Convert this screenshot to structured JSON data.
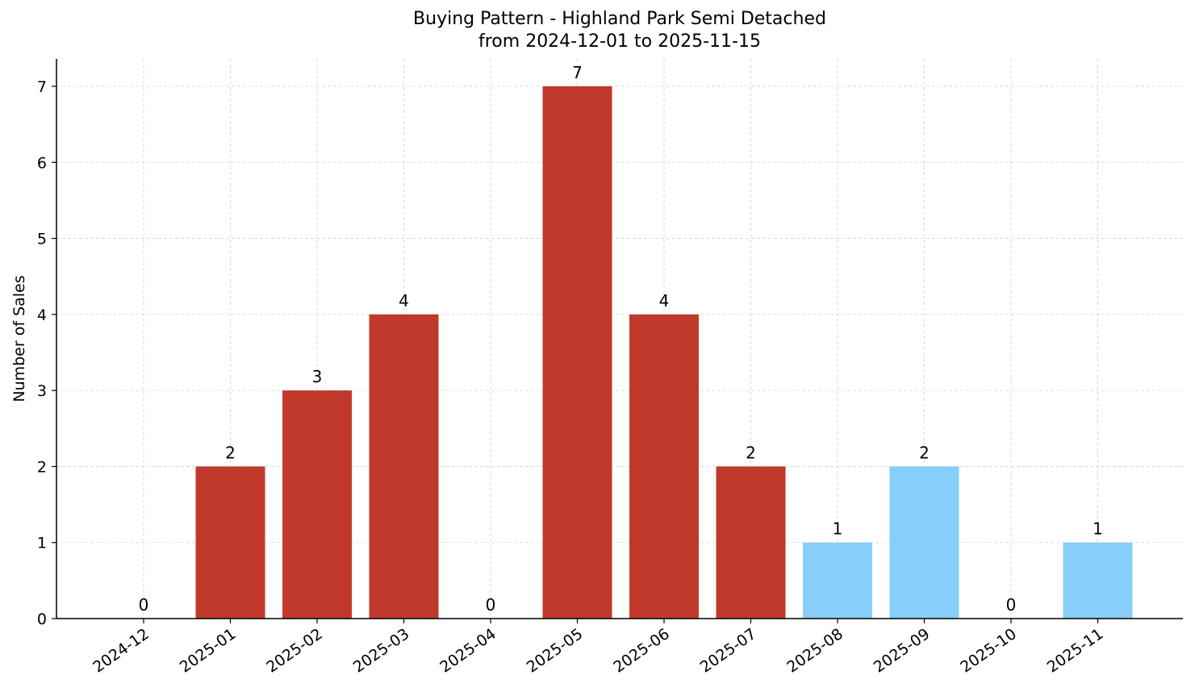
{
  "chart_data": {
    "type": "bar",
    "title": "Buying Pattern - Highland Park Semi Detached",
    "subtitle": "from 2024-12-01 to 2025-11-15",
    "xlabel": "",
    "ylabel": "Number of Sales",
    "ylim": [
      0,
      7.35
    ],
    "yticks": [
      0,
      1,
      2,
      3,
      4,
      5,
      6,
      7
    ],
    "grid": true,
    "legend": null,
    "categories": [
      "2024-12",
      "2025-01",
      "2025-02",
      "2025-03",
      "2025-04",
      "2025-05",
      "2025-06",
      "2025-07",
      "2025-08",
      "2025-09",
      "2025-10",
      "2025-11"
    ],
    "values": [
      0,
      2,
      3,
      4,
      0,
      7,
      4,
      2,
      1,
      2,
      0,
      1
    ],
    "bar_colors": [
      "#c0392b",
      "#c0392b",
      "#c0392b",
      "#c0392b",
      "#c0392b",
      "#c0392b",
      "#c0392b",
      "#c0392b",
      "#87cefa",
      "#87cefa",
      "#87cefa",
      "#87cefa"
    ],
    "data_labels": [
      "0",
      "2",
      "3",
      "4",
      "0",
      "7",
      "4",
      "2",
      "1",
      "2",
      "0",
      "1"
    ]
  },
  "colors": {
    "primary_bar": "#c0392b",
    "secondary_bar": "#87cefa",
    "grid": "#d3d3d3",
    "axis": "#000000"
  }
}
